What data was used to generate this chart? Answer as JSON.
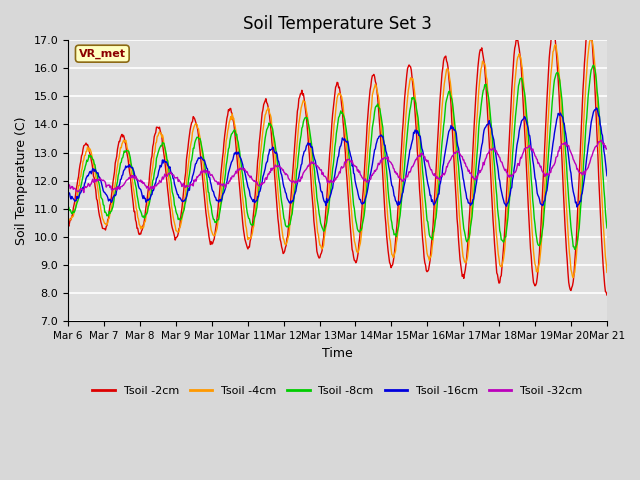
{
  "title": "Soil Temperature Set 3",
  "xlabel": "Time",
  "ylabel": "Soil Temperature (C)",
  "ylim": [
    7.0,
    17.0
  ],
  "yticks": [
    7.0,
    8.0,
    9.0,
    10.0,
    11.0,
    12.0,
    13.0,
    14.0,
    15.0,
    16.0,
    17.0
  ],
  "xtick_labels": [
    "Mar 6",
    "Mar 7",
    "Mar 8",
    "Mar 9",
    "Mar 10",
    "Mar 11",
    "Mar 12",
    "Mar 13",
    "Mar 14",
    "Mar 15",
    "Mar 16",
    "Mar 17",
    "Mar 18",
    "Mar 19",
    "Mar 20",
    "Mar 21"
  ],
  "legend_label": "VR_met",
  "series_labels": [
    "Tsoil -2cm",
    "Tsoil -4cm",
    "Tsoil -8cm",
    "Tsoil -16cm",
    "Tsoil -32cm"
  ],
  "series_colors": [
    "#dd0000",
    "#ff9900",
    "#00cc00",
    "#0000dd",
    "#bb00bb"
  ],
  "background_color": "#e0e0e0",
  "grid_color": "#ffffff",
  "n_days": 15,
  "pts_per_day": 48
}
